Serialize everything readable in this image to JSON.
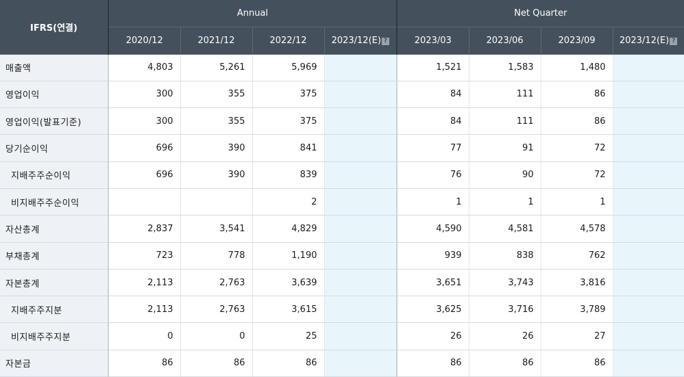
{
  "header": {
    "ifrs": "IFRS(연결)",
    "annual_label": "Annual",
    "quarter_label": "Net Quarter",
    "annual_periods": [
      "2020/12",
      "2021/12",
      "2022/12",
      "2023/12(E)"
    ],
    "quarter_periods": [
      "2023/03",
      "2023/06",
      "2023/09",
      "2023/12(E)"
    ],
    "estimate_icon": "question-icon"
  },
  "rows": [
    {
      "label": "매출액",
      "sub": false,
      "annual": [
        "4,803",
        "5,261",
        "5,969",
        ""
      ],
      "quarter": [
        "1,521",
        "1,583",
        "1,480",
        ""
      ]
    },
    {
      "label": "영업이익",
      "sub": false,
      "annual": [
        "300",
        "355",
        "375",
        ""
      ],
      "quarter": [
        "84",
        "111",
        "86",
        ""
      ]
    },
    {
      "label": "영업이익(발표기준)",
      "sub": false,
      "annual": [
        "300",
        "355",
        "375",
        ""
      ],
      "quarter": [
        "84",
        "111",
        "86",
        ""
      ]
    },
    {
      "label": "당기순이익",
      "sub": false,
      "annual": [
        "696",
        "390",
        "841",
        ""
      ],
      "quarter": [
        "77",
        "91",
        "72",
        ""
      ]
    },
    {
      "label": "지배주주순이익",
      "sub": true,
      "annual": [
        "696",
        "390",
        "839",
        ""
      ],
      "quarter": [
        "76",
        "90",
        "72",
        ""
      ]
    },
    {
      "label": "비지배주주순이익",
      "sub": true,
      "annual": [
        "",
        "",
        "2",
        ""
      ],
      "quarter": [
        "1",
        "1",
        "1",
        ""
      ]
    },
    {
      "label": "자산총계",
      "sub": false,
      "annual": [
        "2,837",
        "3,541",
        "4,829",
        ""
      ],
      "quarter": [
        "4,590",
        "4,581",
        "4,578",
        ""
      ]
    },
    {
      "label": "부채총계",
      "sub": false,
      "annual": [
        "723",
        "778",
        "1,190",
        ""
      ],
      "quarter": [
        "939",
        "838",
        "762",
        ""
      ]
    },
    {
      "label": "자본총계",
      "sub": false,
      "annual": [
        "2,113",
        "2,763",
        "3,639",
        ""
      ],
      "quarter": [
        "3,651",
        "3,743",
        "3,816",
        ""
      ]
    },
    {
      "label": "지배주주지분",
      "sub": true,
      "annual": [
        "2,113",
        "2,763",
        "3,615",
        ""
      ],
      "quarter": [
        "3,625",
        "3,716",
        "3,789",
        ""
      ]
    },
    {
      "label": "비지배주주지분",
      "sub": true,
      "annual": [
        "0",
        "0",
        "25",
        ""
      ],
      "quarter": [
        "26",
        "26",
        "27",
        ""
      ]
    },
    {
      "label": "자본금",
      "sub": false,
      "annual": [
        "86",
        "86",
        "86",
        ""
      ],
      "quarter": [
        "86",
        "86",
        "86",
        ""
      ]
    }
  ],
  "colors": {
    "header_bg": "#44505c",
    "label_bg": "#eef2f6",
    "estimate_bg": "#e8f6fc"
  }
}
